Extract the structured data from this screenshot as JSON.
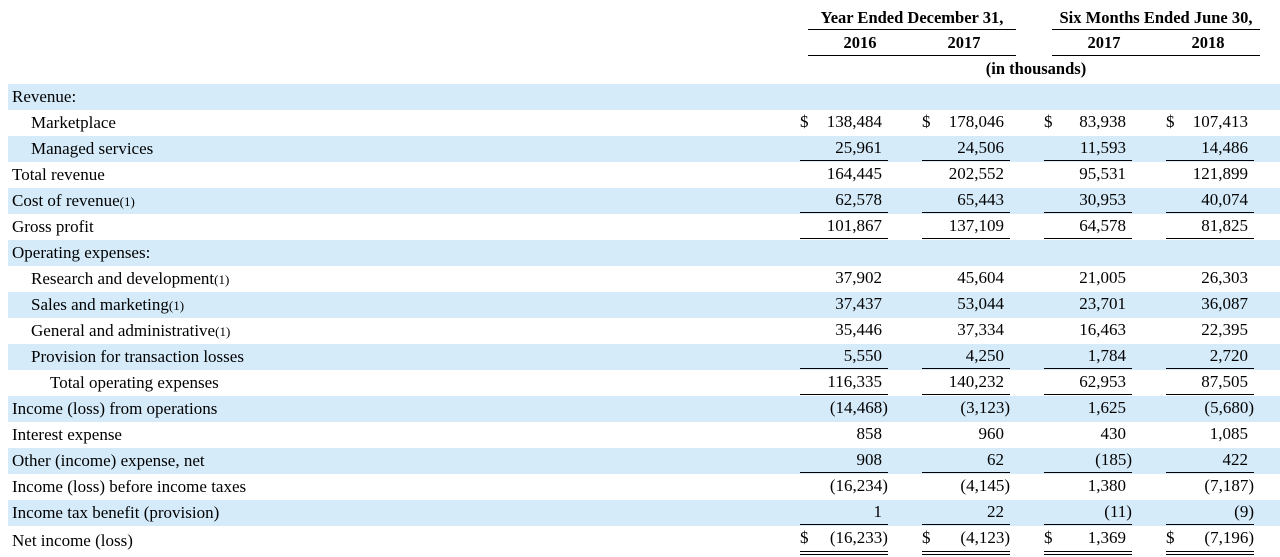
{
  "colors": {
    "stripe": "#d5ebfa",
    "text": "#000000",
    "rule": "#000000"
  },
  "table": {
    "currency_symbol": "$",
    "units_note": "(in thousands)",
    "col_groups": [
      {
        "label": "Year Ended December 31,",
        "years": [
          "2016",
          "2017"
        ]
      },
      {
        "label": "Six Months Ended June 30,",
        "years": [
          "2017",
          "2018"
        ]
      }
    ],
    "rows": [
      {
        "label": "Revenue:",
        "indent": 0,
        "values": [
          "",
          "",
          "",
          ""
        ]
      },
      {
        "label": "Marketplace",
        "indent": 1,
        "dollar": true,
        "values": [
          "138,484",
          "178,046",
          "83,938",
          "107,413"
        ]
      },
      {
        "label": "Managed services",
        "indent": 1,
        "underline": "single",
        "values": [
          "25,961",
          "24,506",
          "11,593",
          "14,486"
        ]
      },
      {
        "label": "Total revenue",
        "indent": 0,
        "values": [
          "164,445",
          "202,552",
          "95,531",
          "121,899"
        ]
      },
      {
        "label": "Cost of revenue",
        "note": "(1)",
        "indent": 0,
        "underline": "single",
        "values": [
          "62,578",
          "65,443",
          "30,953",
          "40,074"
        ]
      },
      {
        "label": "Gross profit",
        "indent": 0,
        "underline": "single",
        "values": [
          "101,867",
          "137,109",
          "64,578",
          "81,825"
        ]
      },
      {
        "label": "Operating expenses:",
        "indent": 0,
        "values": [
          "",
          "",
          "",
          ""
        ]
      },
      {
        "label": "Research and development",
        "note": "(1)",
        "indent": 1,
        "values": [
          "37,902",
          "45,604",
          "21,005",
          "26,303"
        ]
      },
      {
        "label": "Sales and marketing",
        "note": "(1)",
        "indent": 1,
        "values": [
          "37,437",
          "53,044",
          "23,701",
          "36,087"
        ]
      },
      {
        "label": "General and administrative",
        "note": "(1)",
        "indent": 1,
        "values": [
          "35,446",
          "37,334",
          "16,463",
          "22,395"
        ]
      },
      {
        "label": "Provision for transaction losses",
        "indent": 1,
        "underline": "single",
        "values": [
          "5,550",
          "4,250",
          "1,784",
          "2,720"
        ]
      },
      {
        "label": "Total operating expenses",
        "indent": 2,
        "underline": "single",
        "values": [
          "116,335",
          "140,232",
          "62,953",
          "87,505"
        ]
      },
      {
        "label": "Income (loss) from operations",
        "indent": 0,
        "values": [
          "(14,468)",
          "(3,123)",
          "1,625",
          "(5,680)"
        ]
      },
      {
        "label": "Interest expense",
        "indent": 0,
        "values": [
          "858",
          "960",
          "430",
          "1,085"
        ]
      },
      {
        "label": "Other (income) expense, net",
        "indent": 0,
        "underline": "single",
        "values": [
          "908",
          "62",
          "(185)",
          "422"
        ]
      },
      {
        "label": "Income (loss) before income taxes",
        "indent": 0,
        "values": [
          "(16,234)",
          "(4,145)",
          "1,380",
          "(7,187)"
        ]
      },
      {
        "label": "Income tax benefit (provision)",
        "indent": 0,
        "underline": "single",
        "values": [
          "1",
          "22",
          "(11)",
          "(9)"
        ]
      },
      {
        "label": "Net income (loss)",
        "indent": 0,
        "dollar": true,
        "underline": "double",
        "values": [
          "(16,233)",
          "(4,123)",
          "1,369",
          "(7,196)"
        ]
      }
    ]
  }
}
